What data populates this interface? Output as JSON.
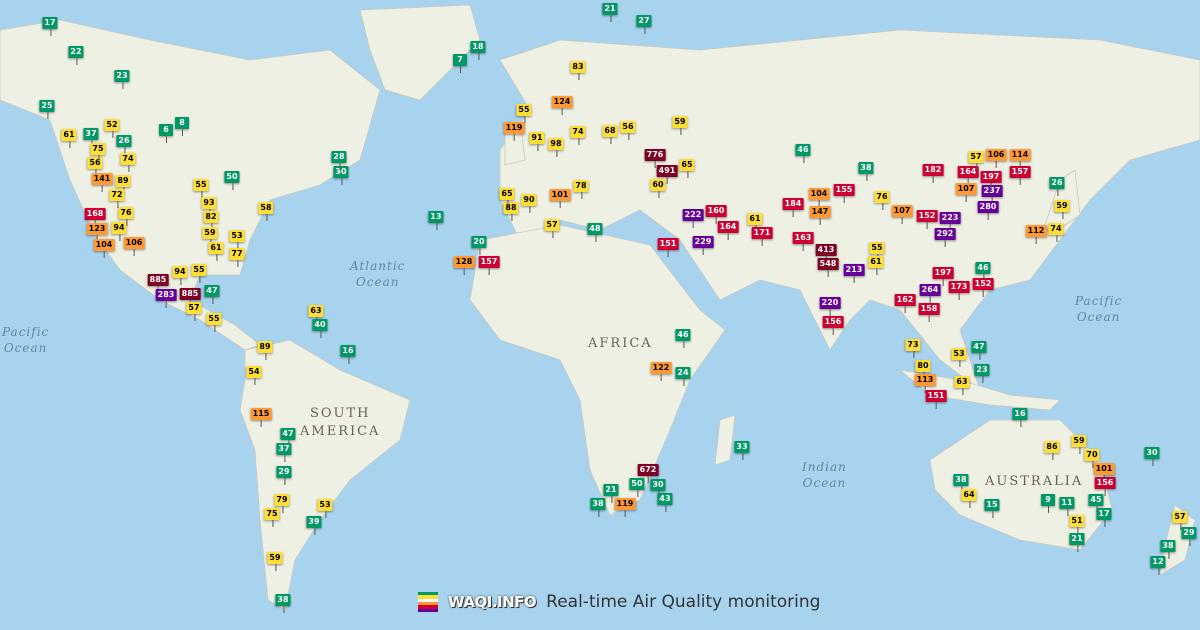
{
  "map": {
    "ocean_labels": {
      "atlantic": "Atlantic\nOcean",
      "pacific_west": "Pacific\nOcean",
      "pacific_east": "Pacific\nOcean",
      "indian": "Indian\nOcean"
    },
    "continent_labels": {
      "africa": "AFRICA",
      "south_america": "SOUTH\nAMERICA",
      "australia": "AUSTRALIA"
    },
    "colors": {
      "ocean": "#a8d3ef",
      "land": "#eef0e4",
      "good": "#009966",
      "moderate": "#ffde33",
      "unhealthy_sensitive": "#ff9933",
      "unhealthy": "#cc0033",
      "very_unhealthy": "#660099",
      "hazardous": "#7e0023"
    },
    "markers": [
      17,
      22,
      23,
      25,
      61,
      37,
      52,
      26,
      8,
      6,
      74,
      56,
      75,
      141,
      89,
      72,
      168,
      123,
      104,
      94,
      106,
      76,
      50,
      55,
      93,
      82,
      59,
      61,
      53,
      77,
      58,
      30,
      28,
      13,
      885,
      283,
      885,
      94,
      55,
      57,
      47,
      55,
      63,
      89,
      54,
      16,
      40,
      115,
      47,
      37,
      79,
      75,
      53,
      39,
      59,
      38,
      29,
      55,
      119,
      91,
      98,
      74,
      68,
      56,
      83,
      124,
      59,
      776,
      491,
      65,
      60,
      88,
      65,
      90,
      78,
      101,
      57,
      48,
      20,
      157,
      128,
      46,
      21,
      27,
      7,
      18,
      151,
      229,
      222,
      164,
      160,
      61,
      171,
      184,
      163,
      104,
      155,
      147,
      38,
      76,
      182,
      413,
      548,
      213,
      220,
      156,
      55,
      61,
      107,
      152,
      223,
      292,
      264,
      237,
      280,
      197,
      106,
      114,
      157,
      164,
      107,
      57,
      59,
      74,
      112,
      26,
      46,
      152,
      173,
      197,
      162,
      158,
      73,
      80,
      113,
      151,
      53,
      47,
      63,
      23,
      46,
      122,
      24,
      33,
      672,
      50,
      30,
      21,
      38,
      119,
      43,
      16,
      86,
      59,
      70,
      101,
      156,
      30,
      38,
      64,
      15,
      9,
      51,
      21,
      11,
      45,
      17,
      57,
      29,
      12,
      38
    ]
  },
  "footer": {
    "brand": "WAQI.INFO",
    "tagline": "Real-time Air Quality monitoring"
  }
}
